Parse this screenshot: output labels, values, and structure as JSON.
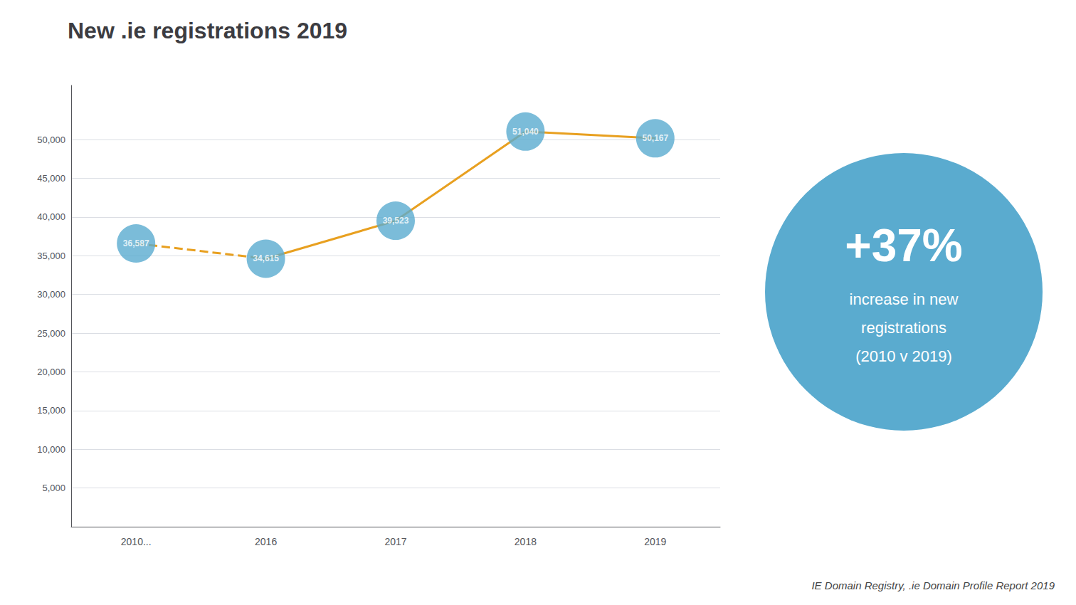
{
  "chart_data": {
    "type": "line",
    "title": "New .ie registrations 2019",
    "categories": [
      "2010...",
      "2016",
      "2017",
      "2018",
      "2019"
    ],
    "ylim": [
      0,
      57000
    ],
    "yticks": [
      {
        "value": 5000,
        "label": "5,000"
      },
      {
        "value": 10000,
        "label": "10,000"
      },
      {
        "value": 15000,
        "label": "15,000"
      },
      {
        "value": 20000,
        "label": "20,000"
      },
      {
        "value": 25000,
        "label": "25,000"
      },
      {
        "value": 30000,
        "label": "30,000"
      },
      {
        "value": 35000,
        "label": "35,000"
      },
      {
        "value": 40000,
        "label": "40,000"
      },
      {
        "value": 45000,
        "label": "45,000"
      },
      {
        "value": 50000,
        "label": "50,000"
      }
    ],
    "grid": true,
    "data_labels": true,
    "series": [
      {
        "type": "line",
        "line_style": "dashed",
        "color": "#e8a020",
        "values": [
          36587,
          34615,
          null,
          null,
          null
        ]
      },
      {
        "type": "line",
        "line_style": "solid",
        "color": "#e8a020",
        "values": [
          null,
          34615,
          39523,
          51040,
          50167
        ]
      },
      {
        "type": "scatter",
        "marker": "circle",
        "color": "#5aabcf",
        "values": [
          36587,
          34615,
          39523,
          51040,
          50167
        ],
        "value_labels": [
          "36,587",
          "34,615",
          "39,523",
          "51,040",
          "50,167"
        ]
      }
    ],
    "annotation": {
      "texts": [
        "+37%",
        "increase in new",
        "registrations",
        "(2010 v 2019)"
      ],
      "color": "#5aabcf"
    },
    "footnote": "IE Domain Registry, .ie Domain Profile Report 2019"
  }
}
